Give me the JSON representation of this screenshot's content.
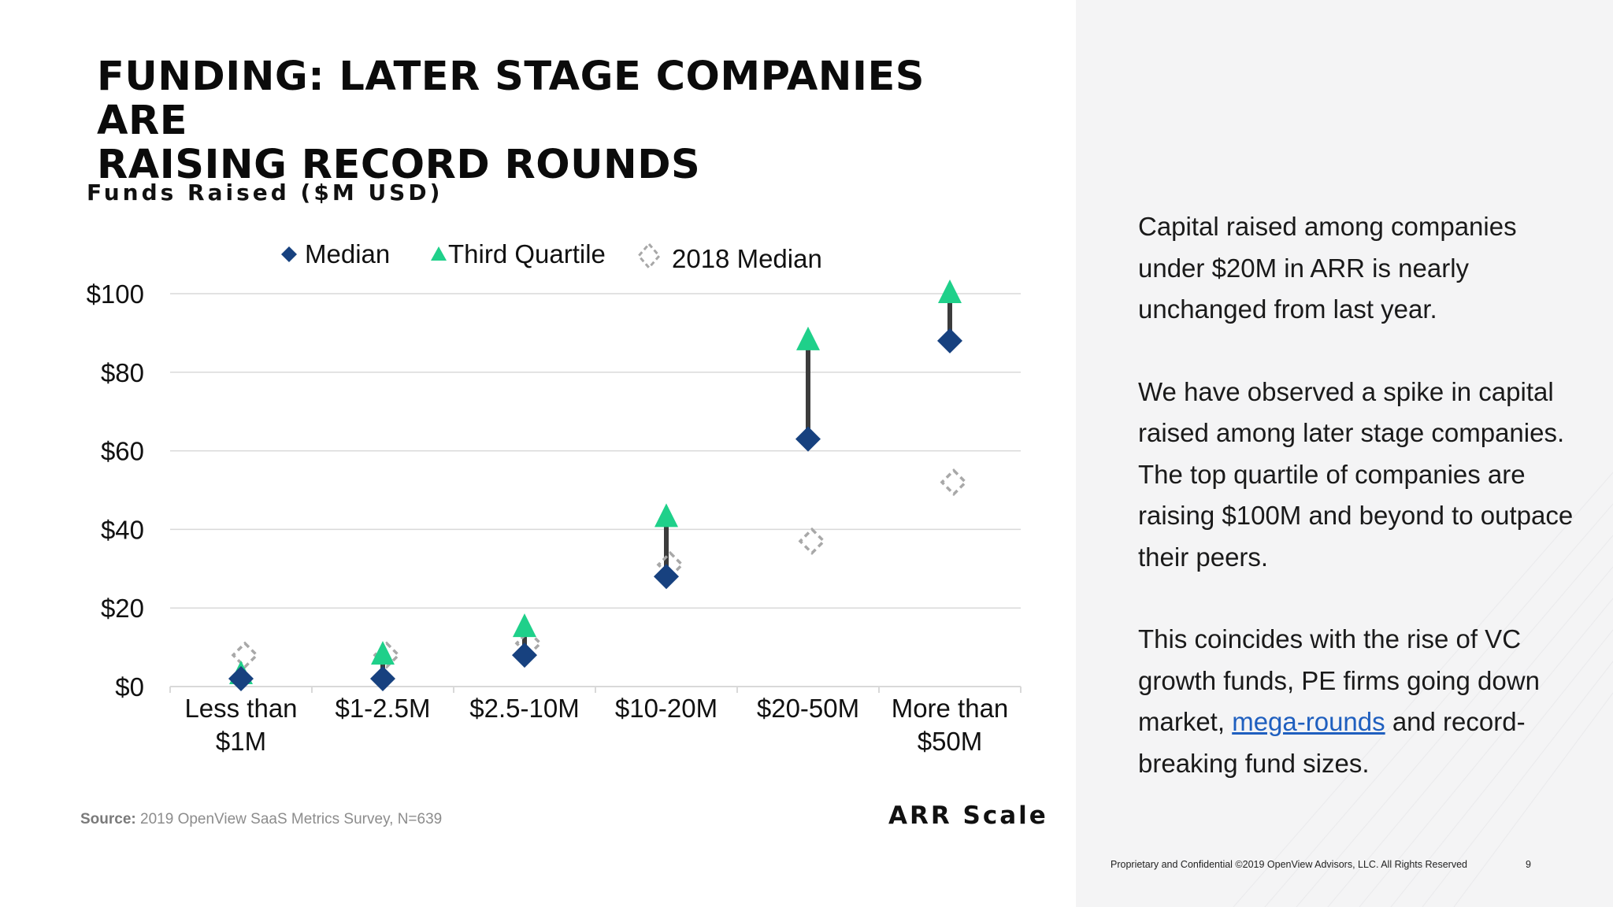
{
  "slide": {
    "title_lines": [
      "FUNDING: LATER STAGE COMPANIES ARE",
      "RAISING RECORD ROUNDS"
    ],
    "source_label": "Source:",
    "source_text": "2019 OpenView SaaS Metrics Survey, N=639",
    "footer": "Proprietary and Confidential ©2019 OpenView Advisors, LLC. All Rights Reserved",
    "page_number": "9"
  },
  "commentary": {
    "p1": "Capital raised among companies under $20M in ARR is nearly unchanged from last year.",
    "p2": "We have observed a spike in capital raised among later stage companies. The top quartile of companies are raising $100M and beyond to outpace their peers.",
    "p3_before": "This coincides with the rise of VC growth funds, PE firms going down market, ",
    "p3_link": "mega-rounds",
    "p3_after": " and record-breaking fund sizes."
  },
  "colors": {
    "median": "#17417f",
    "third_quartile": "#1fd08a",
    "median_2018": "#a8a8a8",
    "connector": "#3c3c3c",
    "grid": "#d9d9d9"
  },
  "chart_data": {
    "type": "scatter",
    "title": "",
    "ylabel": "Funds Raised ($M USD)",
    "xlabel": "ARR Scale",
    "categories": [
      [
        "Less than",
        "$1M"
      ],
      [
        "$1-2.5M"
      ],
      [
        "$2.5-10M"
      ],
      [
        "$10-20M"
      ],
      [
        "$20-50M"
      ],
      [
        "More than",
        "$50M"
      ]
    ],
    "ylim": [
      0,
      100
    ],
    "yticks": [
      0,
      20,
      40,
      60,
      80,
      100
    ],
    "ytick_labels": [
      "$0",
      "$20",
      "$40",
      "$60",
      "$80",
      "$100"
    ],
    "grid": true,
    "legend_position": "top",
    "series": [
      {
        "name": "Median",
        "marker": "diamond",
        "values": [
          2,
          2,
          8,
          28,
          63,
          88
        ]
      },
      {
        "name": "Third Quartile",
        "marker": "triangle",
        "values": [
          3,
          8,
          15,
          43,
          88,
          100
        ]
      },
      {
        "name": "2018 Median",
        "marker": "dashed-diamond",
        "values": [
          8,
          8,
          11,
          31,
          37,
          52
        ]
      }
    ]
  }
}
